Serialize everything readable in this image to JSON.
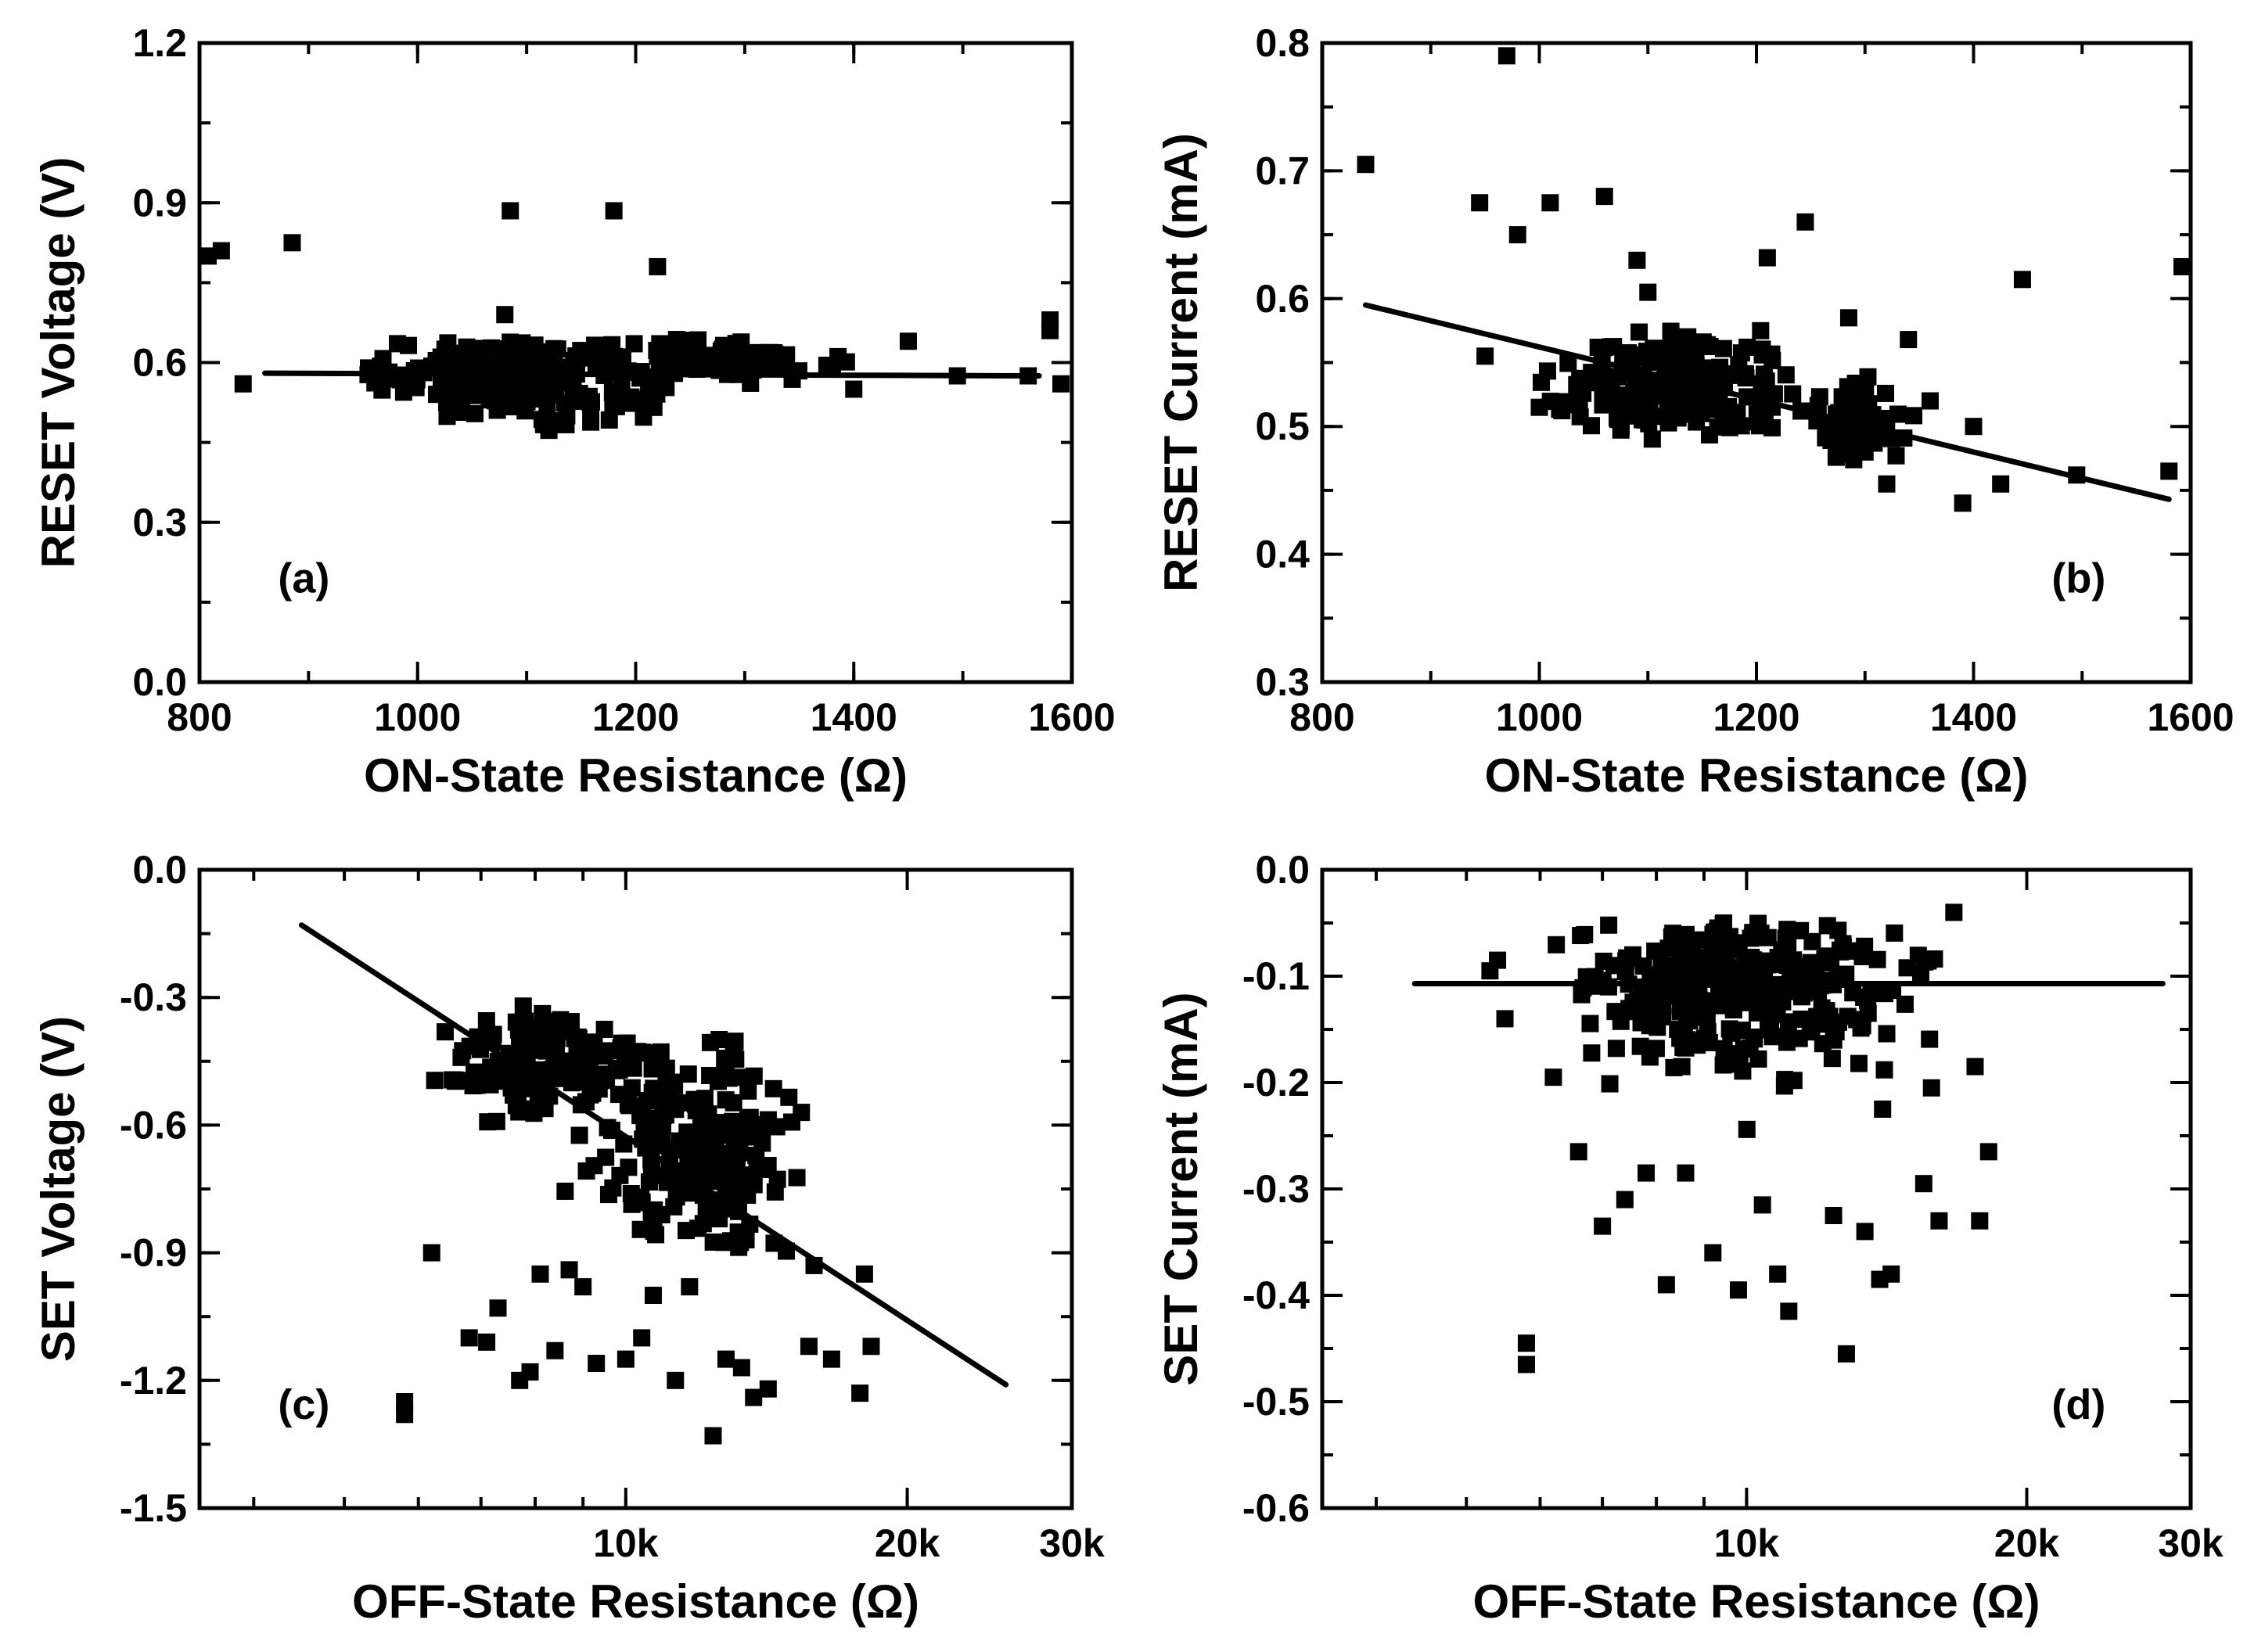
{
  "chart_data": [
    {
      "id": "a",
      "type": "scatter",
      "panel_label": "(a)",
      "xlabel": "ON-State Resistance (Ω)",
      "ylabel": "RESET Voltage (V)",
      "xscale": "linear",
      "xlim": [
        800,
        1600
      ],
      "ylim": [
        0.0,
        1.2
      ],
      "xticks": [
        {
          "v": 800,
          "t": "800"
        },
        {
          "v": 1000,
          "t": "1000"
        },
        {
          "v": 1200,
          "t": "1200"
        },
        {
          "v": 1400,
          "t": "1400"
        },
        {
          "v": 1600,
          "t": "1600"
        }
      ],
      "yticks": [
        {
          "v": 0.0,
          "t": "0.0"
        },
        {
          "v": 0.3,
          "t": "0.3"
        },
        {
          "v": 0.6,
          "t": "0.6"
        },
        {
          "v": 0.9,
          "t": "0.9"
        },
        {
          "v": 1.2,
          "t": "1.2"
        }
      ],
      "fit_line": {
        "x": [
          860,
          1570
        ],
        "y": [
          0.58,
          0.575
        ]
      },
      "outliers": [
        [
          805,
          0.8
        ],
        [
          820,
          0.81
        ],
        [
          840,
          0.56
        ],
        [
          885,
          0.825
        ],
        [
          1085,
          0.885
        ],
        [
          1180,
          0.885
        ],
        [
          1220,
          0.78
        ],
        [
          1080,
          0.69
        ],
        [
          1580,
          0.68
        ],
        [
          1580,
          0.66
        ],
        [
          1590,
          0.56
        ],
        [
          1450,
          0.64
        ],
        [
          1400,
          0.55
        ],
        [
          1560,
          0.575
        ],
        [
          1495,
          0.575
        ]
      ],
      "clusters": [
        {
          "n": 230,
          "x_center": 1110,
          "x_spread": 70,
          "y_center": 0.575,
          "y_spread": 0.04,
          "x_min": 960,
          "x_max": 1230,
          "y_min": 0.47,
          "y_max": 0.64
        },
        {
          "n": 70,
          "x_center": 1290,
          "x_spread": 45,
          "y_center": 0.61,
          "y_spread": 0.02,
          "x_min": 1220,
          "x_max": 1420,
          "y_min": 0.56,
          "y_max": 0.645
        },
        {
          "n": 12,
          "x_center": 980,
          "x_spread": 25,
          "y_center": 0.59,
          "y_spread": 0.015,
          "x_min": 940,
          "x_max": 1020,
          "y_min": 0.56,
          "y_max": 0.61
        }
      ]
    },
    {
      "id": "b",
      "type": "scatter",
      "panel_label": "(b)",
      "xlabel": "ON-State Resistance (Ω)",
      "ylabel": "RESET Current (mA)",
      "xscale": "linear",
      "xlim": [
        800,
        1600
      ],
      "ylim": [
        0.3,
        0.8
      ],
      "xticks": [
        {
          "v": 800,
          "t": "800"
        },
        {
          "v": 1000,
          "t": "1000"
        },
        {
          "v": 1200,
          "t": "1200"
        },
        {
          "v": 1400,
          "t": "1400"
        },
        {
          "v": 1600,
          "t": "1600"
        }
      ],
      "yticks": [
        {
          "v": 0.3,
          "t": "0.3"
        },
        {
          "v": 0.4,
          "t": "0.4"
        },
        {
          "v": 0.5,
          "t": "0.5"
        },
        {
          "v": 0.6,
          "t": "0.6"
        },
        {
          "v": 0.7,
          "t": "0.7"
        },
        {
          "v": 0.8,
          "t": "0.8"
        }
      ],
      "fit_line": {
        "x": [
          840,
          1580
        ],
        "y": [
          0.595,
          0.443
        ]
      },
      "outliers": [
        [
          840,
          0.705
        ],
        [
          945,
          0.675
        ],
        [
          970,
          0.79
        ],
        [
          980,
          0.65
        ],
        [
          1010,
          0.675
        ],
        [
          1060,
          0.68
        ],
        [
          1090,
          0.63
        ],
        [
          1100,
          0.605
        ],
        [
          1245,
          0.66
        ],
        [
          1210,
          0.632
        ],
        [
          1285,
          0.585
        ],
        [
          1445,
          0.615
        ],
        [
          1600,
          0.625
        ],
        [
          1580,
          0.465
        ],
        [
          1390,
          0.44
        ],
        [
          1495,
          0.462
        ],
        [
          1425,
          0.455
        ],
        [
          1340,
          0.568
        ],
        [
          1360,
          0.52
        ],
        [
          1400,
          0.5
        ],
        [
          1320,
          0.455
        ],
        [
          1300,
          0.48
        ],
        [
          950,
          0.555
        ],
        [
          1000,
          0.515
        ]
      ],
      "clusters": [
        {
          "n": 230,
          "x_center": 1120,
          "x_spread": 55,
          "y_center": 0.532,
          "y_spread": 0.02,
          "x_min": 1000,
          "x_max": 1240,
          "y_min": 0.485,
          "y_max": 0.575
        },
        {
          "n": 55,
          "x_center": 1290,
          "x_spread": 30,
          "y_center": 0.505,
          "y_spread": 0.017,
          "x_min": 1240,
          "x_max": 1350,
          "y_min": 0.47,
          "y_max": 0.54
        }
      ]
    },
    {
      "id": "c",
      "type": "scatter",
      "panel_label": "(c)",
      "xlabel": "OFF-State Resistance (Ω)",
      "ylabel": "SET Voltage (V)",
      "xscale": "log",
      "xlim": [
        3500,
        30000
      ],
      "ylim": [
        -1.5,
        0.0
      ],
      "xticks": [
        {
          "v": 10000,
          "t": "10k"
        },
        {
          "v": 20000,
          "t": "20k"
        },
        {
          "v": 30000,
          "t": "30k"
        }
      ],
      "yticks": [
        {
          "v": 0.0,
          "t": "0.0"
        },
        {
          "v": -0.3,
          "t": "-0.3"
        },
        {
          "v": -0.6,
          "t": "-0.6"
        },
        {
          "v": -0.9,
          "t": "-0.9"
        },
        {
          "v": -1.2,
          "t": "-1.2"
        },
        {
          "v": -1.5,
          "t": "-1.5"
        }
      ],
      "fit_line": {
        "x": [
          4500,
          25500
        ],
        "y": [
          -0.13,
          -1.21
        ]
      },
      "outliers": [
        [
          5800,
          -1.25
        ],
        [
          5800,
          -1.28
        ],
        [
          6200,
          -0.9
        ],
        [
          6800,
          -1.1
        ],
        [
          7100,
          -1.11
        ],
        [
          7300,
          -1.03
        ],
        [
          7700,
          -1.2
        ],
        [
          7900,
          -1.18
        ],
        [
          8100,
          -0.95
        ],
        [
          8400,
          -1.13
        ],
        [
          8700,
          -0.94
        ],
        [
          9000,
          -0.98
        ],
        [
          9300,
          -1.16
        ],
        [
          10000,
          -1.15
        ],
        [
          10700,
          -1.0
        ],
        [
          11300,
          -1.2
        ],
        [
          12400,
          -1.33
        ],
        [
          12800,
          -1.15
        ],
        [
          13300,
          -1.17
        ],
        [
          13700,
          -1.24
        ],
        [
          14200,
          -1.22
        ],
        [
          15700,
          -1.12
        ],
        [
          16600,
          -1.15
        ],
        [
          17800,
          -1.23
        ],
        [
          18300,
          -1.12
        ],
        [
          18000,
          -0.95
        ],
        [
          15900,
          -0.93
        ],
        [
          10400,
          -1.1
        ],
        [
          11700,
          -0.98
        ]
      ],
      "clusters": [
        {
          "n": 150,
          "x_center": 8200,
          "x_spread": 1000,
          "y_center": -0.46,
          "y_spread": 0.06,
          "x_min": 5200,
          "x_max": 10500,
          "y_min": -0.72,
          "y_max": -0.31
        },
        {
          "n": 210,
          "x_center": 11800,
          "x_spread": 1500,
          "y_center": -0.66,
          "y_spread": 0.13,
          "x_min": 8500,
          "x_max": 16000,
          "y_min": -0.92,
          "y_max": -0.36
        }
      ]
    },
    {
      "id": "d",
      "type": "scatter",
      "panel_label": "(d)",
      "xlabel": "OFF-State Resistance (Ω)",
      "ylabel": "SET Current (mA)",
      "xscale": "log",
      "xlim": [
        3500,
        30000
      ],
      "ylim": [
        -0.6,
        0.0
      ],
      "xticks": [
        {
          "v": 10000,
          "t": "10k"
        },
        {
          "v": 20000,
          "t": "20k"
        },
        {
          "v": 30000,
          "t": "30k"
        }
      ],
      "yticks": [
        {
          "v": 0.0,
          "t": "0.0"
        },
        {
          "v": -0.1,
          "t": "-0.1"
        },
        {
          "v": -0.2,
          "t": "-0.2"
        },
        {
          "v": -0.3,
          "t": "-0.3"
        },
        {
          "v": -0.4,
          "t": "-0.4"
        },
        {
          "v": -0.5,
          "t": "-0.5"
        },
        {
          "v": -0.6,
          "t": "-0.6"
        }
      ],
      "fit_line": {
        "x": [
          4400,
          28000
        ],
        "y": [
          -0.107,
          -0.107
        ]
      },
      "outliers": [
        [
          5800,
          -0.445
        ],
        [
          5800,
          -0.465
        ],
        [
          6200,
          -0.195
        ],
        [
          6600,
          -0.265
        ],
        [
          7000,
          -0.335
        ],
        [
          7400,
          -0.31
        ],
        [
          7800,
          -0.285
        ],
        [
          8200,
          -0.39
        ],
        [
          8600,
          -0.285
        ],
        [
          9200,
          -0.36
        ],
        [
          9800,
          -0.395
        ],
        [
          10400,
          -0.315
        ],
        [
          10800,
          -0.38
        ],
        [
          11100,
          -0.415
        ],
        [
          12400,
          -0.325
        ],
        [
          12800,
          -0.455
        ],
        [
          13400,
          -0.34
        ],
        [
          13900,
          -0.385
        ],
        [
          14300,
          -0.38
        ],
        [
          15500,
          -0.295
        ],
        [
          16100,
          -0.33
        ],
        [
          17800,
          -0.33
        ],
        [
          18200,
          -0.265
        ],
        [
          17600,
          -0.185
        ],
        [
          16700,
          -0.04
        ],
        [
          5400,
          -0.085
        ],
        [
          5300,
          -0.095
        ],
        [
          5500,
          -0.14
        ],
        [
          15800,
          -0.205
        ],
        [
          14000,
          -0.225
        ]
      ],
      "clusters": [
        {
          "n": 330,
          "x_center": 9800,
          "x_spread": 2100,
          "y_center": -0.11,
          "y_spread": 0.04,
          "x_min": 6000,
          "x_max": 16000,
          "y_min": -0.26,
          "y_max": -0.05
        }
      ]
    }
  ]
}
